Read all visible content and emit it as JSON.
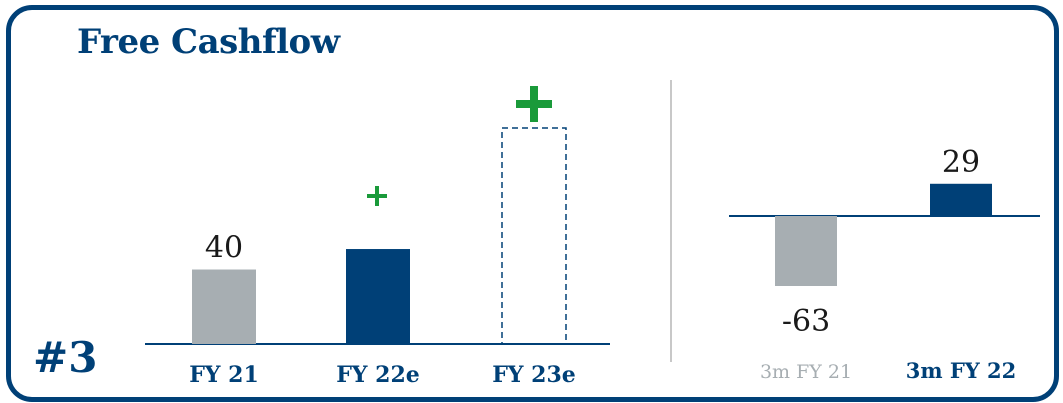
{
  "title": "Free Cashflow",
  "slide_number": "#3",
  "colors": {
    "navy": "#004077",
    "grey": "#a7aeb2",
    "green": "#1a9a3a",
    "divider": "#c8c8c8"
  },
  "chart_data": [
    {
      "type": "bar",
      "title": "",
      "categories": [
        "FY 21",
        "FY 22e",
        "FY 23e"
      ],
      "values": [
        40,
        51,
        116
      ],
      "value_labels": [
        "40",
        "",
        ""
      ],
      "bar_styles": [
        "grey",
        "navy",
        "dashed-outline"
      ],
      "markers": [
        "",
        "+",
        "+"
      ],
      "ylim": [
        0,
        116
      ],
      "grid": false,
      "legend": "none"
    },
    {
      "type": "bar",
      "title": "",
      "categories": [
        "3m FY 21",
        "3m FY 22"
      ],
      "values": [
        -63,
        29
      ],
      "value_labels": [
        "-63",
        "29"
      ],
      "bar_styles": [
        "grey",
        "navy"
      ],
      "category_label_colors": [
        "grey",
        "navy"
      ],
      "ylim": [
        -63,
        29
      ],
      "grid": false,
      "legend": "none"
    }
  ]
}
